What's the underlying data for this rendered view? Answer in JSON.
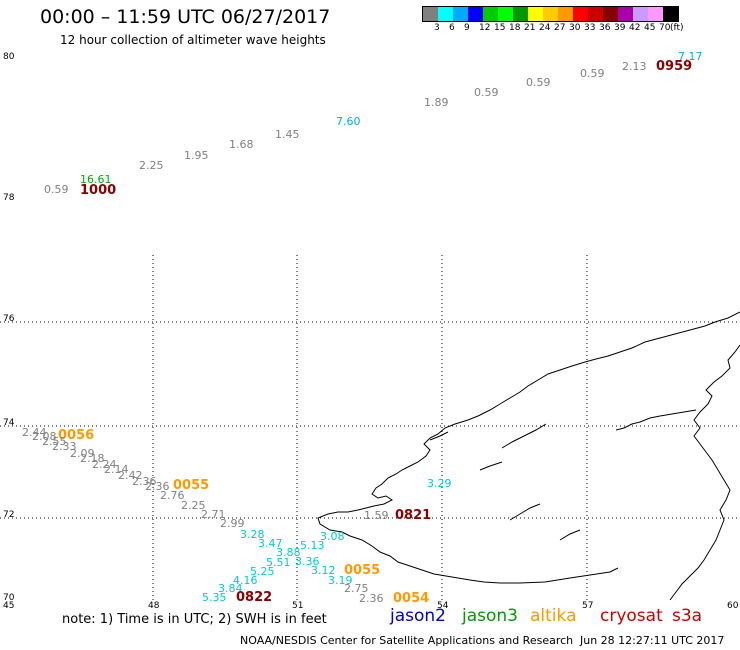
{
  "title": "00:00 – 11:59 UTC 06/27/2017",
  "subtitle": "12 hour collection of altimeter wave heights",
  "colorbar": {
    "colors": [
      "#808080",
      "#00ffff",
      "#00aaff",
      "#0000ff",
      "#00cc00",
      "#00ff00",
      "#009900",
      "#ffff00",
      "#ffcc00",
      "#ff9900",
      "#ff0000",
      "#cc0000",
      "#880000",
      "#aa00aa",
      "#cc99ff",
      "#ff99ff",
      "#000000"
    ],
    "labels": [
      "3",
      "6",
      "9",
      "12",
      "15",
      "18",
      "21",
      "24",
      "27",
      "30",
      "33",
      "36",
      "39",
      "42",
      "45",
      "70",
      "(ft)"
    ]
  },
  "axes": {
    "lat_labels": [
      "80",
      "78",
      "76",
      "74",
      "72",
      "70"
    ],
    "lon_labels": [
      "45",
      "48",
      "51",
      "54",
      "57",
      "60"
    ]
  },
  "observations": [
    {
      "text": "0.59",
      "color": "#808080"
    },
    {
      "text": "16.61",
      "color": "#00aa00"
    },
    {
      "text": "1000",
      "color": "#880000"
    },
    {
      "text": "2.25",
      "color": "#808080"
    },
    {
      "text": "1.95",
      "color": "#808080"
    },
    {
      "text": "1.68",
      "color": "#808080"
    },
    {
      "text": "1.45",
      "color": "#808080"
    },
    {
      "text": "7.60",
      "color": "#00aaee"
    },
    {
      "text": "1.89",
      "color": "#808080"
    },
    {
      "text": "0.59",
      "color": "#808080"
    },
    {
      "text": "0.59",
      "color": "#808080"
    },
    {
      "text": "0.59",
      "color": "#808080"
    },
    {
      "text": "2.13",
      "color": "#808080"
    },
    {
      "text": "0959",
      "color": "#880000"
    },
    {
      "text": "7.17",
      "color": "#00aaee"
    },
    {
      "text": "2.44",
      "color": "#808080"
    },
    {
      "text": "2.08",
      "color": "#808080"
    },
    {
      "text": "0056",
      "color": "#ff9900"
    },
    {
      "text": "2.55",
      "color": "#808080"
    },
    {
      "text": "2.33",
      "color": "#808080"
    },
    {
      "text": "2.09",
      "color": "#808080"
    },
    {
      "text": "2.18",
      "color": "#808080"
    },
    {
      "text": "2.24",
      "color": "#808080"
    },
    {
      "text": "2.14",
      "color": "#808080"
    },
    {
      "text": "2.42",
      "color": "#808080"
    },
    {
      "text": "2.36",
      "color": "#808080"
    },
    {
      "text": "2.36",
      "color": "#808080"
    },
    {
      "text": "0055",
      "color": "#ff9900"
    },
    {
      "text": "2.76",
      "color": "#808080"
    },
    {
      "text": "2.25",
      "color": "#808080"
    },
    {
      "text": "2.71",
      "color": "#808080"
    },
    {
      "text": "2.99",
      "color": "#808080"
    },
    {
      "text": "3.28",
      "color": "#00cccc"
    },
    {
      "text": "3.47",
      "color": "#00cccc"
    },
    {
      "text": "3.88",
      "color": "#00cccc"
    },
    {
      "text": "5.13",
      "color": "#00cccc"
    },
    {
      "text": "3.08",
      "color": "#00cccc"
    },
    {
      "text": "5.51",
      "color": "#00cccc"
    },
    {
      "text": "3.36",
      "color": "#00cccc"
    },
    {
      "text": "5.25",
      "color": "#00cccc"
    },
    {
      "text": "3.12",
      "color": "#00cccc"
    },
    {
      "text": "0055",
      "color": "#ff9900"
    },
    {
      "text": "3.19",
      "color": "#00cccc"
    },
    {
      "text": "4.16",
      "color": "#00cccc"
    },
    {
      "text": "3.84",
      "color": "#00cccc"
    },
    {
      "text": "2.75",
      "color": "#808080"
    },
    {
      "text": "5.35",
      "color": "#00cccc"
    },
    {
      "text": "0822",
      "color": "#880000"
    },
    {
      "text": "2.36",
      "color": "#808080"
    },
    {
      "text": "0054",
      "color": "#ff9900"
    },
    {
      "text": "3.29",
      "color": "#00cccc"
    },
    {
      "text": "1.59",
      "color": "#808080"
    },
    {
      "text": "0821",
      "color": "#880000"
    }
  ],
  "note": "note: 1) Time is in UTC; 2) SWH is in feet",
  "legend": [
    {
      "label": "jason2",
      "color": "#0000cc"
    },
    {
      "label": "jason3",
      "color": "#009900"
    },
    {
      "label": "altika",
      "color": "#ff9900"
    },
    {
      "label": "cryosat",
      "color": "#cc0000"
    },
    {
      "label": "s3a",
      "color": "#cc0000"
    }
  ],
  "footer": {
    "left": "NOAA/NESDIS Center for Satellite Applications and Research",
    "right": "Jun 28 12:27:11 UTC 2017"
  }
}
